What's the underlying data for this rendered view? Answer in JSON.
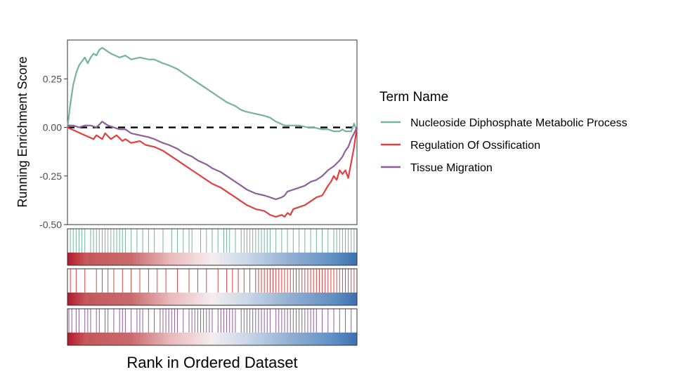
{
  "chart_data": {
    "type": "line",
    "title": "",
    "xlabel": "Rank in Ordered Dataset",
    "ylabel": "Running Enrichment Score",
    "ylim": [
      -0.5,
      0.45
    ],
    "y_ticks": [
      {
        "value": 0.25,
        "label": "0.25"
      },
      {
        "value": 0.0,
        "label": "0.00"
      },
      {
        "value": -0.25,
        "label": "-0.25"
      },
      {
        "value": -0.5,
        "label": "-0.50"
      }
    ],
    "x_range": [
      0,
      100
    ],
    "reference_line": {
      "y": 0,
      "style": "dashed",
      "color": "#000000"
    },
    "legend": {
      "title": "Term Name",
      "position": "right",
      "entries": [
        {
          "label": "Nucleoside Diphosphate Metabolic Process",
          "color": "#76b39c"
        },
        {
          "label": "Regulation Of Ossification",
          "color": "#e0403f"
        },
        {
          "label": "Tissue Migration",
          "color": "#8e5f9c"
        }
      ]
    },
    "series": [
      {
        "name": "Nucleoside Diphosphate Metabolic Process",
        "color": "#76b39c",
        "x": [
          0,
          1,
          2,
          3,
          4,
          5,
          6,
          7,
          8,
          9,
          10,
          11,
          12,
          13,
          15,
          18,
          20,
          22,
          25,
          28,
          30,
          33,
          35,
          38,
          40,
          43,
          45,
          48,
          50,
          53,
          55,
          58,
          60,
          62,
          65,
          68,
          70,
          72,
          75,
          78,
          80,
          83,
          85,
          88,
          90,
          92,
          93,
          94,
          95,
          96,
          97,
          98,
          98.5,
          99,
          99.5,
          100
        ],
        "y": [
          0.0,
          0.12,
          0.22,
          0.28,
          0.32,
          0.34,
          0.36,
          0.33,
          0.36,
          0.38,
          0.37,
          0.4,
          0.41,
          0.4,
          0.38,
          0.36,
          0.37,
          0.35,
          0.36,
          0.35,
          0.35,
          0.33,
          0.32,
          0.3,
          0.28,
          0.25,
          0.23,
          0.2,
          0.18,
          0.15,
          0.13,
          0.11,
          0.09,
          0.08,
          0.07,
          0.06,
          0.05,
          0.03,
          0.01,
          0.01,
          0.01,
          0.0,
          0.0,
          -0.01,
          -0.01,
          -0.02,
          -0.02,
          -0.02,
          -0.01,
          -0.02,
          -0.02,
          -0.02,
          0.0,
          0.02,
          0.0,
          -0.02
        ]
      },
      {
        "name": "Regulation Of Ossification",
        "color": "#e0403f",
        "x": [
          0,
          3,
          6,
          9,
          10,
          12,
          13,
          15,
          17,
          19,
          20,
          22,
          25,
          27,
          30,
          33,
          35,
          38,
          40,
          43,
          45,
          48,
          50,
          53,
          55,
          58,
          60,
          62,
          65,
          68,
          70,
          72,
          74,
          75,
          76,
          77,
          78,
          80,
          82,
          84,
          86,
          88,
          90,
          91,
          92,
          93,
          94,
          95,
          96,
          97,
          98,
          99,
          99.5,
          100
        ],
        "y": [
          0.0,
          -0.02,
          -0.04,
          -0.06,
          -0.04,
          -0.06,
          -0.03,
          -0.06,
          -0.04,
          -0.07,
          -0.06,
          -0.08,
          -0.07,
          -0.09,
          -0.1,
          -0.12,
          -0.14,
          -0.17,
          -0.19,
          -0.22,
          -0.24,
          -0.27,
          -0.29,
          -0.31,
          -0.33,
          -0.36,
          -0.38,
          -0.4,
          -0.42,
          -0.43,
          -0.45,
          -0.46,
          -0.45,
          -0.46,
          -0.44,
          -0.45,
          -0.42,
          -0.41,
          -0.4,
          -0.38,
          -0.36,
          -0.35,
          -0.3,
          -0.28,
          -0.25,
          -0.27,
          -0.22,
          -0.24,
          -0.22,
          -0.26,
          -0.18,
          -0.1,
          -0.05,
          0.0
        ]
      },
      {
        "name": "Tissue Migration",
        "color": "#8e5f9c",
        "x": [
          0,
          2,
          4,
          6,
          8,
          10,
          12,
          14,
          16,
          18,
          20,
          22,
          25,
          28,
          30,
          33,
          35,
          38,
          40,
          43,
          45,
          48,
          50,
          53,
          55,
          58,
          60,
          62,
          65,
          68,
          70,
          72,
          74,
          75,
          76,
          78,
          80,
          82,
          84,
          86,
          88,
          90,
          92,
          94,
          95,
          96,
          97,
          98,
          99,
          100
        ],
        "y": [
          0.01,
          0.01,
          0.0,
          0.01,
          0.01,
          0.0,
          0.03,
          0.01,
          0.0,
          -0.01,
          -0.01,
          -0.03,
          -0.04,
          -0.05,
          -0.06,
          -0.08,
          -0.09,
          -0.11,
          -0.13,
          -0.15,
          -0.17,
          -0.19,
          -0.21,
          -0.23,
          -0.25,
          -0.28,
          -0.3,
          -0.32,
          -0.34,
          -0.35,
          -0.36,
          -0.37,
          -0.36,
          -0.35,
          -0.33,
          -0.32,
          -0.31,
          -0.3,
          -0.28,
          -0.27,
          -0.25,
          -0.22,
          -0.2,
          -0.17,
          -0.15,
          -0.12,
          -0.1,
          -0.06,
          -0.03,
          0.0
        ]
      }
    ],
    "rug_panels": [
      {
        "name": "Nucleoside Diphosphate Metabolic Process",
        "color": "#76b39c",
        "hits": [
          1,
          2,
          3,
          4,
          5,
          6,
          8,
          9,
          10,
          11,
          12,
          13,
          14,
          15,
          16,
          17,
          18,
          19,
          20,
          22,
          24,
          26,
          28,
          30,
          33,
          36,
          38,
          40,
          42,
          43,
          46,
          48,
          50,
          52,
          54,
          55,
          56,
          58,
          60,
          61,
          62,
          63,
          64,
          65,
          66,
          67,
          68,
          69,
          70,
          72,
          74,
          76,
          78,
          80,
          82,
          84,
          86,
          88,
          90,
          92,
          93,
          94,
          95,
          96,
          97,
          98,
          99
        ]
      },
      {
        "name": "Regulation Of Ossification",
        "color": "#e0403f",
        "hits": [
          1,
          3,
          6,
          10,
          12,
          14,
          16,
          19,
          22,
          25,
          28,
          31,
          34,
          38,
          42,
          45,
          48,
          52,
          55,
          57,
          59,
          61,
          63,
          65,
          66,
          67,
          68,
          69,
          70,
          71,
          72,
          73,
          74,
          75,
          76,
          77,
          78,
          79,
          80,
          81,
          82,
          83,
          84,
          85,
          86,
          87,
          88,
          89,
          90,
          91,
          92,
          93,
          94,
          95,
          96,
          97,
          98,
          99
        ]
      },
      {
        "name": "Tissue Migration",
        "color": "#8e5f9c",
        "hits": [
          0.5,
          1.5,
          3,
          4,
          6,
          7,
          8,
          10,
          11,
          13,
          14,
          16,
          18,
          19,
          20,
          22,
          24,
          25,
          26,
          28,
          30,
          32,
          33,
          34,
          35,
          36,
          37,
          38,
          40,
          42,
          43,
          44,
          45,
          46,
          47,
          48,
          49,
          50,
          52,
          53,
          54,
          55,
          56,
          57,
          58,
          60,
          61,
          62,
          63,
          64,
          65,
          66,
          67,
          68,
          69,
          70,
          72,
          73,
          74,
          75,
          76,
          77,
          78,
          79,
          80,
          81,
          82,
          83,
          84,
          85,
          86,
          88,
          90,
          92,
          94,
          96,
          98
        ]
      }
    ]
  }
}
